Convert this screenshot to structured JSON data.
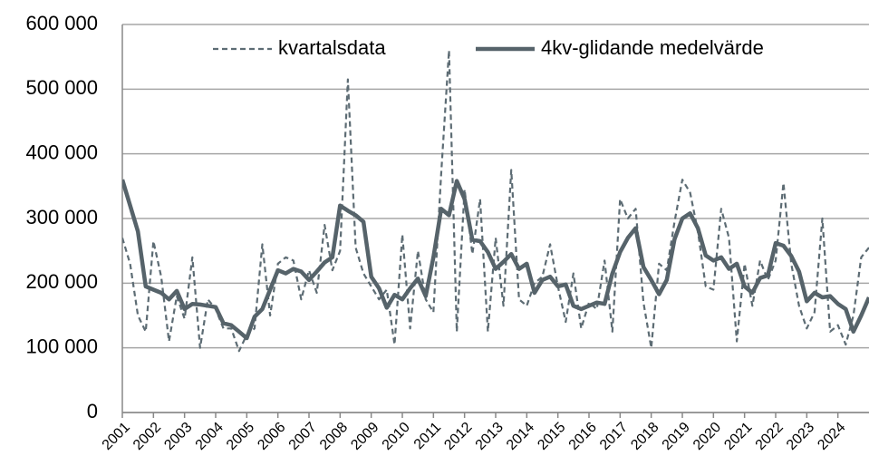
{
  "chart_data": {
    "type": "line",
    "x": [
      2001,
      2001.25,
      2001.5,
      2001.75,
      2002,
      2002.25,
      2002.5,
      2002.75,
      2003,
      2003.25,
      2003.5,
      2003.75,
      2004,
      2004.25,
      2004.5,
      2004.75,
      2005,
      2005.25,
      2005.5,
      2005.75,
      2006,
      2006.25,
      2006.5,
      2006.75,
      2007,
      2007.25,
      2007.5,
      2007.75,
      2008,
      2008.25,
      2008.5,
      2008.75,
      2009,
      2009.25,
      2009.5,
      2009.75,
      2010,
      2010.25,
      2010.5,
      2010.75,
      2011,
      2011.25,
      2011.5,
      2011.75,
      2012,
      2012.25,
      2012.5,
      2012.75,
      2013,
      2013.25,
      2013.5,
      2013.75,
      2014,
      2014.25,
      2014.5,
      2014.75,
      2015,
      2015.25,
      2015.5,
      2015.75,
      2016,
      2016.25,
      2016.5,
      2016.75,
      2017,
      2017.25,
      2017.5,
      2017.75,
      2018,
      2018.25,
      2018.5,
      2018.75,
      2019,
      2019.25,
      2019.5,
      2019.75,
      2020,
      2020.25,
      2020.5,
      2020.75,
      2021,
      2021.25,
      2021.5,
      2021.75,
      2022,
      2022.25,
      2022.5,
      2022.75,
      2023,
      2023.25,
      2023.5,
      2023.75,
      2024,
      2024.25,
      2024.5,
      2024.75,
      2025
    ],
    "series": [
      {
        "name": "kvartalsdata",
        "color": "#5d6c74",
        "dashed": true,
        "values": [
          270000,
          230000,
          150000,
          125000,
          265000,
          210000,
          110000,
          180000,
          145000,
          240000,
          100000,
          175000,
          160000,
          130000,
          130000,
          95000,
          120000,
          130000,
          260000,
          150000,
          230000,
          240000,
          235000,
          175000,
          220000,
          185000,
          290000,
          220000,
          250000,
          515000,
          255000,
          215000,
          195000,
          175000,
          190000,
          105000,
          275000,
          130000,
          250000,
          175000,
          155000,
          370000,
          560000,
          125000,
          345000,
          245000,
          330000,
          125000,
          270000,
          165000,
          375000,
          175000,
          165000,
          200000,
          210000,
          260000,
          195000,
          140000,
          215000,
          130000,
          170000,
          160000,
          235000,
          125000,
          330000,
          300000,
          315000,
          170000,
          100000,
          230000,
          220000,
          295000,
          360000,
          340000,
          280000,
          195000,
          190000,
          315000,
          270000,
          110000,
          230000,
          165000,
          235000,
          205000,
          235000,
          355000,
          230000,
          165000,
          130000,
          155000,
          300000,
          125000,
          135000,
          105000,
          150000,
          240000,
          255000
        ]
      },
      {
        "name": "4kv-glidande medelvärde",
        "color": "#56636a",
        "dashed": false,
        "values": [
          360000,
          320000,
          280000,
          195000,
          190000,
          185000,
          175000,
          188000,
          160000,
          168000,
          167000,
          165000,
          163000,
          138000,
          135000,
          125000,
          115000,
          148000,
          160000,
          190000,
          220000,
          215000,
          222000,
          218000,
          205000,
          218000,
          232000,
          240000,
          320000,
          312000,
          305000,
          295000,
          210000,
          192000,
          162000,
          182000,
          175000,
          192000,
          207000,
          180000,
          240000,
          315000,
          305000,
          358000,
          330000,
          267000,
          265000,
          248000,
          222000,
          233000,
          245000,
          222000,
          230000,
          185000,
          205000,
          210000,
          195000,
          198000,
          165000,
          160000,
          165000,
          170000,
          168000,
          215000,
          248000,
          270000,
          285000,
          225000,
          205000,
          183000,
          205000,
          268000,
          300000,
          308000,
          285000,
          243000,
          235000,
          240000,
          222000,
          230000,
          195000,
          185000,
          208000,
          212000,
          262000,
          258000,
          242000,
          218000,
          172000,
          185000,
          178000,
          180000,
          168000,
          160000,
          125000,
          150000,
          178000
        ]
      }
    ],
    "xlim": [
      2001,
      2025
    ],
    "xticks": [
      2001,
      2002,
      2003,
      2004,
      2005,
      2006,
      2007,
      2008,
      2009,
      2010,
      2011,
      2012,
      2013,
      2014,
      2015,
      2016,
      2017,
      2018,
      2019,
      2020,
      2021,
      2022,
      2023,
      2024
    ],
    "ylim": [
      0,
      600000
    ],
    "yticks": [
      0,
      {
        "value": 100000,
        "label": "100 000"
      },
      {
        "value": 200000,
        "label": "200 000"
      },
      {
        "value": 300000,
        "label": "300 000"
      },
      {
        "value": 400000,
        "label": "400 000"
      },
      {
        "value": 500000,
        "label": "500 000"
      },
      {
        "value": 600000,
        "label": "600 000"
      }
    ],
    "grid": true,
    "legend": "top"
  }
}
